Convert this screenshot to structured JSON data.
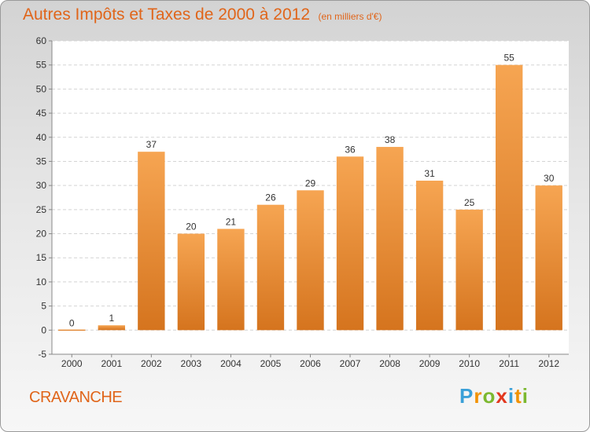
{
  "title": "Autres Impôts et Taxes de 2000 à 2012",
  "unit": "(en milliers d'€)",
  "place": "CRAVANCHE",
  "logo": {
    "letters": [
      "P",
      "r",
      "o",
      "x",
      "i",
      "t",
      "i"
    ],
    "colors": [
      "#3aa0d8",
      "#f29200",
      "#7cb82f",
      "#e2371e",
      "#3aa0d8",
      "#f29200",
      "#7cb82f"
    ]
  },
  "colors": {
    "bar_top": "#f6a552",
    "bar_bottom": "#d5741e",
    "accent": "#e0651a"
  },
  "chart_data": {
    "type": "bar",
    "categories": [
      "2000",
      "2001",
      "2002",
      "2003",
      "2004",
      "2005",
      "2006",
      "2007",
      "2008",
      "2009",
      "2010",
      "2011",
      "2012"
    ],
    "values": [
      0,
      1,
      37,
      20,
      21,
      26,
      29,
      36,
      38,
      31,
      25,
      55,
      30
    ],
    "yticks": [
      -5,
      0,
      5,
      10,
      15,
      20,
      25,
      30,
      35,
      40,
      45,
      50,
      55,
      60
    ],
    "ylim": [
      -5,
      60
    ],
    "grid": true,
    "data_labels": true
  }
}
